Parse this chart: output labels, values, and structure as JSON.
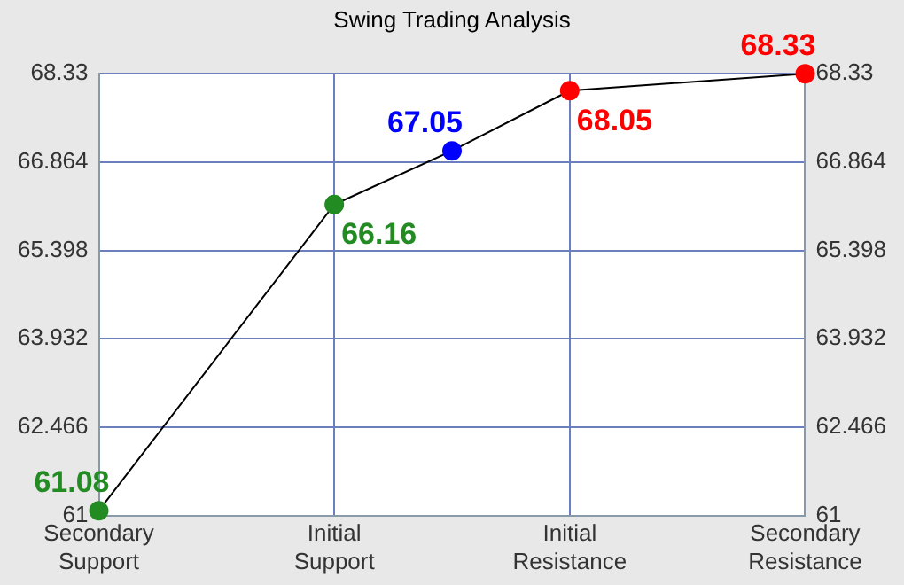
{
  "chart_data": {
    "type": "line",
    "title": "Swing Trading Analysis",
    "categories": [
      "Secondary Support",
      null,
      "Initial Support",
      null,
      "Initial Resistance",
      null,
      "Secondary Resistance"
    ],
    "ylim": [
      61,
      68.33
    ],
    "yticks": [
      61,
      62.466,
      63.932,
      65.398,
      66.864,
      68.33
    ],
    "y2lim": [
      61,
      68.33
    ],
    "y2ticks": [
      61,
      62.466,
      63.932,
      65.398,
      66.864,
      68.33
    ],
    "series": [
      {
        "color": "#000000",
        "values": [
          61.08,
          null,
          66.16,
          67.05,
          68.05,
          null,
          68.33
        ],
        "colors": [
          "#228b22",
          null,
          "#228b22",
          "#0000ff",
          "#ff0000",
          null,
          "#ff0000"
        ]
      }
    ],
    "data_labels": true,
    "grid": true,
    "legend": false,
    "marker": "circle",
    "line_style": "solid"
  }
}
